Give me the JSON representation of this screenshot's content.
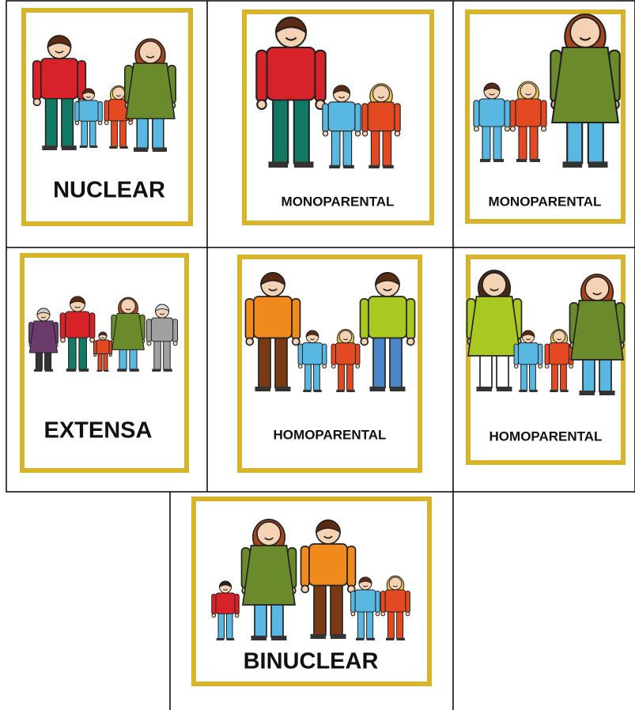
{
  "cards": [
    {
      "label": "NUCLEAR"
    },
    {
      "label": "MONOPARENTAL"
    },
    {
      "label": "MONOPARENTAL"
    },
    {
      "label": "EXTENSA"
    },
    {
      "label": "HOMOPARENTAL"
    },
    {
      "label": "HOMOPARENTAL"
    },
    {
      "label": "BINUCLEAR"
    }
  ]
}
